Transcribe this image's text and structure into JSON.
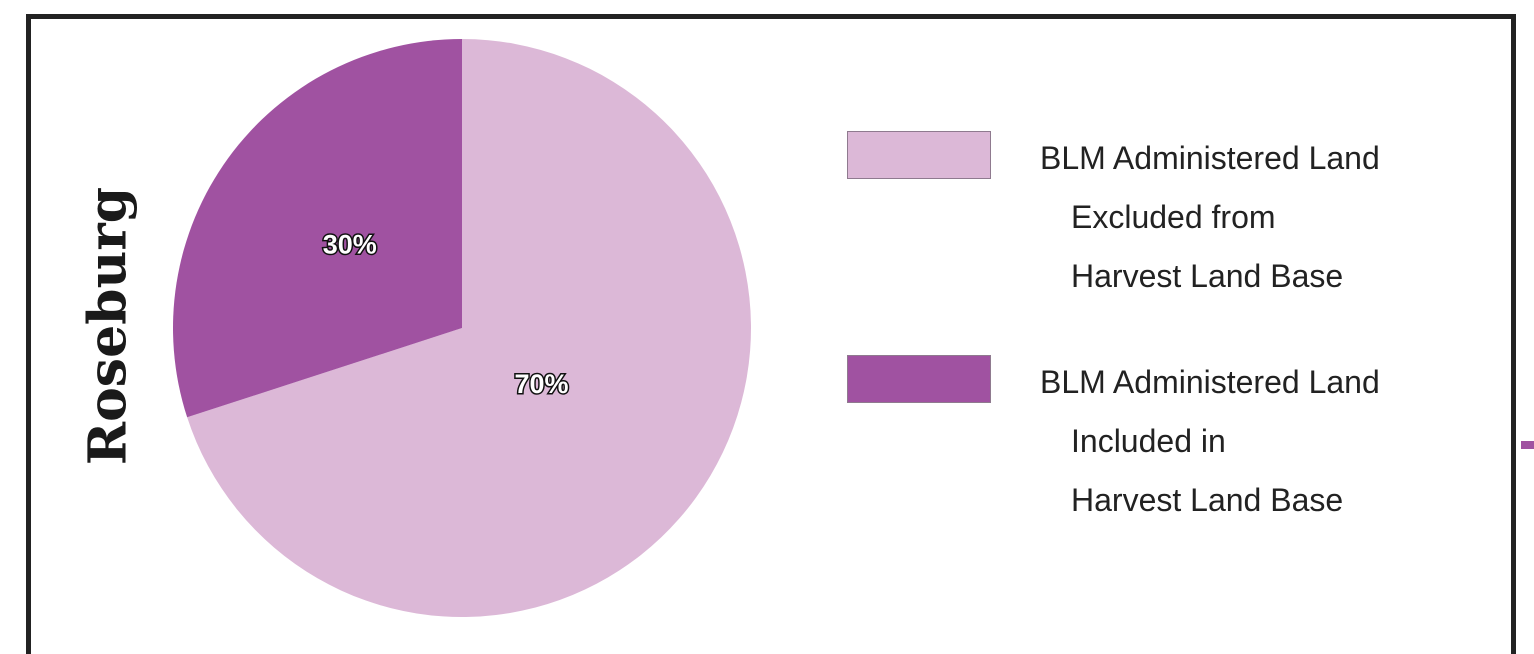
{
  "chart_data": {
    "type": "pie",
    "title": "Roseburg",
    "slices": [
      {
        "name": "BLM Administered Land Excluded from Harvest Land Base",
        "value": 70,
        "label": "70%",
        "color": "#dcb8d7"
      },
      {
        "name": "BLM Administered Land Included in Harvest Land Base",
        "value": 30,
        "label": "30%",
        "color": "#a052a1"
      }
    ],
    "legend": [
      {
        "lines": [
          "BLM Administered Land",
          "Excluded from",
          "Harvest Land Base"
        ],
        "color": "#dcb8d7"
      },
      {
        "lines": [
          "BLM Administered Land",
          "Included in",
          "Harvest Land Base"
        ],
        "color": "#a052a1"
      }
    ],
    "legend_position": "right",
    "border_color": "#222222"
  }
}
